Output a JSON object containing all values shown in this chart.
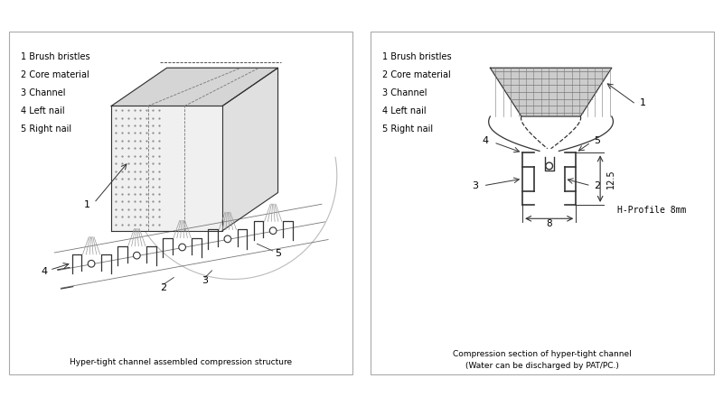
{
  "bg_color": "#ffffff",
  "line_color": "#333333",
  "left_panel": {
    "legend": [
      "1 Brush bristles",
      "2 Core material",
      "3 Channel",
      "4 Left nail",
      "5 Right nail"
    ],
    "caption": "Hyper-tight channel assembled compression structure"
  },
  "right_panel": {
    "legend": [
      "1 Brush bristles",
      "2 Core material",
      "3 Channel",
      "4 Left nail",
      "5 Right nail"
    ],
    "caption1": "Compression section of hyper-tight channel",
    "caption2": "(Water can be discharged by PAT/PC.)",
    "dim1": "12.5",
    "dim2": "8",
    "profile_label": "H-Profile 8mm"
  }
}
